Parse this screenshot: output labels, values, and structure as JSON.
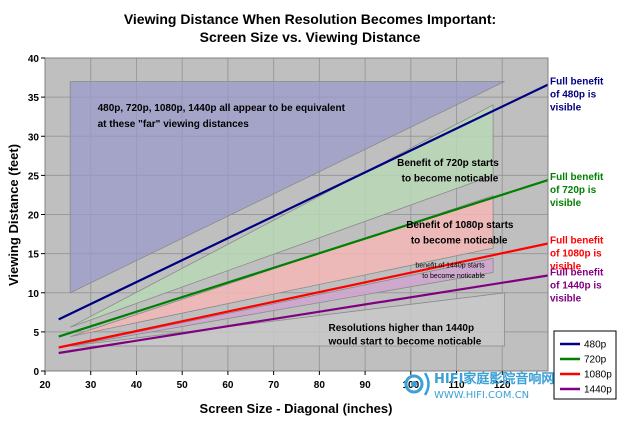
{
  "chart_data": {
    "type": "line",
    "title": "Viewing Distance When Resolution Becomes Important:",
    "subtitle": "Screen Size vs. Viewing Distance",
    "xlabel": "Screen Size - Diagonal (inches)",
    "ylabel": "Viewing Distance (feet)",
    "xlim": [
      20,
      130
    ],
    "ylim": [
      0,
      40
    ],
    "x_ticks": [
      "20",
      "30",
      "40",
      "50",
      "60",
      "70",
      "80",
      "90",
      "100",
      "110",
      "120"
    ],
    "y_ticks": [
      "0",
      "5",
      "10",
      "15",
      "20",
      "25",
      "30",
      "35",
      "40"
    ],
    "grid": true,
    "legend_position": "bottom-right",
    "series": [
      {
        "name": "480p",
        "color": "#000080",
        "x": [
          23,
          130
        ],
        "y": [
          6.6,
          36.6
        ]
      },
      {
        "name": "720p",
        "color": "#008000",
        "x": [
          23,
          130
        ],
        "y": [
          4.4,
          24.4
        ]
      },
      {
        "name": "1080p",
        "color": "#ff0000",
        "x": [
          23,
          130
        ],
        "y": [
          3.0,
          16.3
        ]
      },
      {
        "name": "1440p",
        "color": "#800080",
        "x": [
          23,
          130
        ],
        "y": [
          2.3,
          12.2
        ]
      }
    ],
    "regions": [
      {
        "name": "far",
        "color": "#9999cc",
        "opacity": 0.7,
        "points": [
          [
            25.5,
            37
          ],
          [
            120.5,
            37
          ],
          [
            25.5,
            10
          ]
        ]
      },
      {
        "name": "720p",
        "color": "#b9d7b6",
        "opacity": 0.85,
        "points": [
          [
            25.5,
            5.6
          ],
          [
            118,
            34
          ],
          [
            118,
            25
          ]
        ]
      },
      {
        "name": "1080p",
        "color": "#f4b6b6",
        "opacity": 0.85,
        "points": [
          [
            25.5,
            4.4
          ],
          [
            118,
            22.4
          ],
          [
            118,
            15.7
          ]
        ]
      },
      {
        "name": "1440p",
        "color": "#cfa6cf",
        "opacity": 0.85,
        "points": [
          [
            25.5,
            3.2
          ],
          [
            118,
            14.4
          ],
          [
            118,
            12.6
          ]
        ]
      },
      {
        "name": "higher",
        "color": "#c8c8c8",
        "opacity": 0.85,
        "points": [
          [
            25.5,
            3.2
          ],
          [
            120.5,
            10.0
          ],
          [
            120.5,
            3.2
          ]
        ]
      }
    ],
    "annotations": [
      {
        "text": "480p, 720p, 1080p, 1440p all appear to be equivalent",
        "x": 31.5,
        "y": 33.2,
        "style": "normal"
      },
      {
        "text": "at these \"far\" viewing distances",
        "x": 31.5,
        "y": 31.2,
        "style": "normal"
      },
      {
        "text": "Benefit of 720p starts",
        "x": 97,
        "y": 26.2,
        "style": "normal"
      },
      {
        "text": "to become noticable",
        "x": 98,
        "y": 24.2,
        "style": "normal"
      },
      {
        "text": "Benefit of 1080p starts",
        "x": 99,
        "y": 18.3,
        "style": "normal"
      },
      {
        "text": "to become noticable",
        "x": 100,
        "y": 16.3,
        "style": "normal"
      },
      {
        "text": "benefit of 1440p starts",
        "x": 101,
        "y": 13.2,
        "style": "small"
      },
      {
        "text": "to become noticable",
        "x": 102.5,
        "y": 11.9,
        "style": "small"
      },
      {
        "text": "Resolutions higher than 1440p",
        "x": 82,
        "y": 5.1,
        "style": "normal"
      },
      {
        "text": "would start to become noticable",
        "x": 82,
        "y": 3.4,
        "style": "normal"
      }
    ],
    "edge_labels": [
      {
        "lines": [
          "Full benefit",
          "of 480p is",
          "visible"
        ],
        "color": "#000080",
        "y": 36.6
      },
      {
        "lines": [
          "Full benefit",
          "of 720p is",
          "visible"
        ],
        "color": "#008000",
        "y": 24.4
      },
      {
        "lines": [
          "Full benefit",
          "of 1080p is",
          "visible"
        ],
        "color": "#ff0000",
        "y": 16.3
      },
      {
        "lines": [
          "Full benefit",
          "of 1440p is",
          "visible"
        ],
        "color": "#800080",
        "y": 12.2
      }
    ]
  },
  "watermark": {
    "brand": "HIFI家庭影院音响网",
    "url": "WWW.HIFI.COM.CN",
    "color": "#3aa0d8"
  }
}
